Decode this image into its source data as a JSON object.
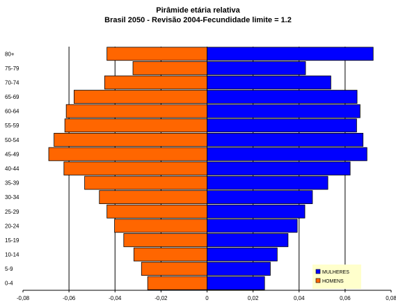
{
  "chart_data": {
    "type": "bar",
    "orientation": "horizontal",
    "title": "Pirâmide etária relativa",
    "subtitle": "Brasil 2050 - Revisão 2004-Fecundidade limite = 1.2",
    "categories": [
      "0-4",
      "5-9",
      "10-14",
      "15-19",
      "20-24",
      "25-29",
      "30-34",
      "35-39",
      "40-44",
      "45-49",
      "50-54",
      "55-59",
      "60-64",
      "65-69",
      "70-74",
      "75-79",
      "80+"
    ],
    "series": [
      {
        "name": "MULHERES",
        "color": "#0000FF",
        "values": [
          0.025,
          0.0275,
          0.0305,
          0.0352,
          0.0392,
          0.0425,
          0.0458,
          0.0525,
          0.0622,
          0.0695,
          0.0678,
          0.065,
          0.0665,
          0.0652,
          0.0538,
          0.0428,
          0.0722
        ]
      },
      {
        "name": "HOMENS",
        "color": "#FF6600",
        "values": [
          -0.0258,
          -0.0285,
          -0.0318,
          -0.0362,
          -0.0402,
          -0.0435,
          -0.0468,
          -0.0532,
          -0.0622,
          -0.0688,
          -0.0665,
          -0.0618,
          -0.0612,
          -0.0578,
          -0.0445,
          -0.0322,
          -0.0435
        ]
      }
    ],
    "xlim": [
      -0.08,
      0.08
    ],
    "xticks": [
      -0.08,
      -0.06,
      -0.04,
      -0.02,
      0,
      0.02,
      0.04,
      0.06,
      0.08
    ],
    "xtick_labels": [
      "-0,08",
      "-0,06",
      "-0,04",
      "-0,02",
      "0",
      "0,02",
      "0,04",
      "0,06",
      "0,08"
    ],
    "grid": "vertical",
    "legend_placement": "bottom-right",
    "legend_background": "#FFFFCC"
  }
}
